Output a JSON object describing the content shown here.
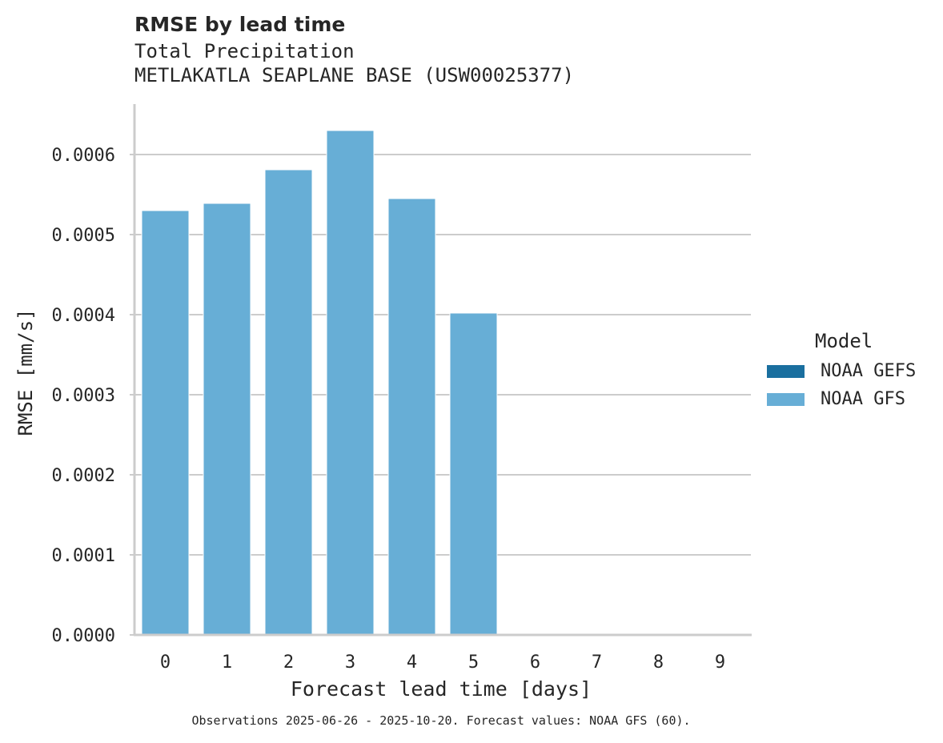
{
  "chart_data": {
    "type": "bar",
    "title": "RMSE by lead time",
    "subtitle_lines": [
      "Total Precipitation",
      "METLAKATLA SEAPLANE BASE (USW00025377)"
    ],
    "xlabel": "Forecast lead time [days]",
    "ylabel": "RMSE [mm/s]",
    "categories": [
      "0",
      "1",
      "2",
      "3",
      "4",
      "5",
      "6",
      "7",
      "8",
      "9"
    ],
    "series": [
      {
        "name": "NOAA GEFS",
        "color": "#1a6f9f",
        "values": [
          null,
          null,
          null,
          null,
          null,
          null,
          null,
          null,
          null,
          null
        ]
      },
      {
        "name": "NOAA GFS",
        "color": "#67aed6",
        "values": [
          0.00053,
          0.000539,
          0.000581,
          0.00063,
          0.000545,
          0.000402,
          null,
          null,
          null,
          null
        ]
      }
    ],
    "ylim": [
      0,
      0.00066
    ],
    "yticks": [
      "0.0000",
      "0.0001",
      "0.0002",
      "0.0003",
      "0.0004",
      "0.0005",
      "0.0006"
    ],
    "ytick_values": [
      0,
      0.0001,
      0.0002,
      0.0003,
      0.0004,
      0.0005,
      0.0006
    ],
    "grid": "horizontal",
    "legend": {
      "title": "Model",
      "position": "right"
    },
    "caption": "Observations 2025-06-26 - 2025-10-20. Forecast values: NOAA GFS (60)."
  },
  "colors": {
    "grid": "#cccccc",
    "axis": "#cccccc",
    "text": "#262626"
  }
}
